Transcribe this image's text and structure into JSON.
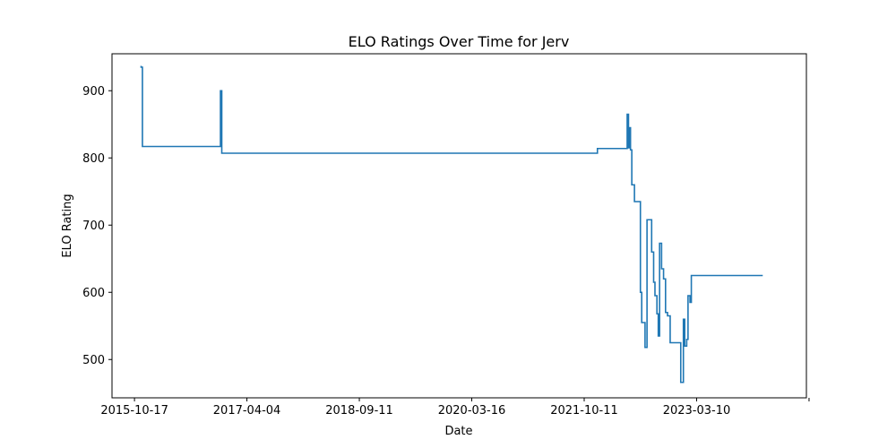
{
  "chart_data": {
    "type": "line",
    "title": "ELO Ratings Over Time for Jerv",
    "xlabel": "Date",
    "ylabel": "ELO Rating",
    "grid": false,
    "legend": "none",
    "x_tick_labels": [
      "2015-10-17",
      "2017-04-04",
      "2018-09-11",
      "2020-03-16",
      "2021-10-11",
      "2023-03-10"
    ],
    "x_tick_values": [
      0,
      17,
      34,
      51,
      68,
      85
    ],
    "x_extra_tick": 102,
    "x_unit": "months since 2015-10-17",
    "xlim": [
      -3.4,
      101.6
    ],
    "y_ticks": [
      500,
      600,
      700,
      800,
      900
    ],
    "ylim": [
      443,
      955
    ],
    "series": [
      {
        "name": "Jerv",
        "color": "#1f77b4",
        "x": [
          1.0,
          1.0,
          1.2,
          1.2,
          13.0,
          13.0,
          13.2,
          13.2,
          13.4,
          13.4,
          70.0,
          70.0,
          74.5,
          74.5,
          74.7,
          74.7,
          74.9,
          74.9,
          75.0,
          75.0,
          75.2,
          75.2,
          75.3,
          75.3,
          75.6,
          75.6,
          76.5,
          76.5,
          76.7,
          76.7,
          77.0,
          77.0,
          77.2,
          77.2,
          77.5,
          77.5,
          78.2,
          78.2,
          78.5,
          78.5,
          78.7,
          78.7,
          79.0,
          79.0,
          79.2,
          79.2,
          79.4,
          79.4,
          79.7,
          79.7,
          80.0,
          80.0,
          80.3,
          80.3,
          80.6,
          80.6,
          81.0,
          81.0,
          81.4,
          81.4,
          82.6,
          82.6,
          82.9,
          82.9,
          83.0,
          83.0,
          83.2,
          83.2,
          83.5,
          83.5,
          83.7,
          83.7,
          84.0,
          84.0,
          84.2,
          84.2,
          84.5,
          84.5,
          84.8,
          84.8,
          85.0,
          85.0,
          85.6,
          85.6,
          85.8,
          85.8,
          85.9,
          85.9,
          86.1,
          86.1,
          86.3,
          86.3,
          95.0
        ],
        "y": [
          937,
          935,
          935,
          817,
          817,
          900,
          900,
          807,
          807,
          807,
          807,
          814,
          814,
          865,
          865,
          815,
          815,
          845,
          845,
          812,
          812,
          760,
          760,
          760,
          760,
          735,
          735,
          600,
          600,
          555,
          555,
          555,
          555,
          518,
          518,
          708,
          708,
          660,
          660,
          615,
          615,
          595,
          595,
          568,
          568,
          535,
          535,
          673,
          673,
          635,
          635,
          620,
          620,
          570,
          570,
          565,
          565,
          525,
          525,
          525,
          525,
          466,
          466,
          466,
          466,
          560,
          560,
          520,
          520,
          530,
          530,
          595,
          595,
          585,
          585,
          625,
          625,
          625,
          625,
          625,
          625,
          625,
          625,
          625,
          625,
          625,
          625,
          625,
          625,
          625,
          625,
          625,
          625
        ]
      }
    ]
  }
}
